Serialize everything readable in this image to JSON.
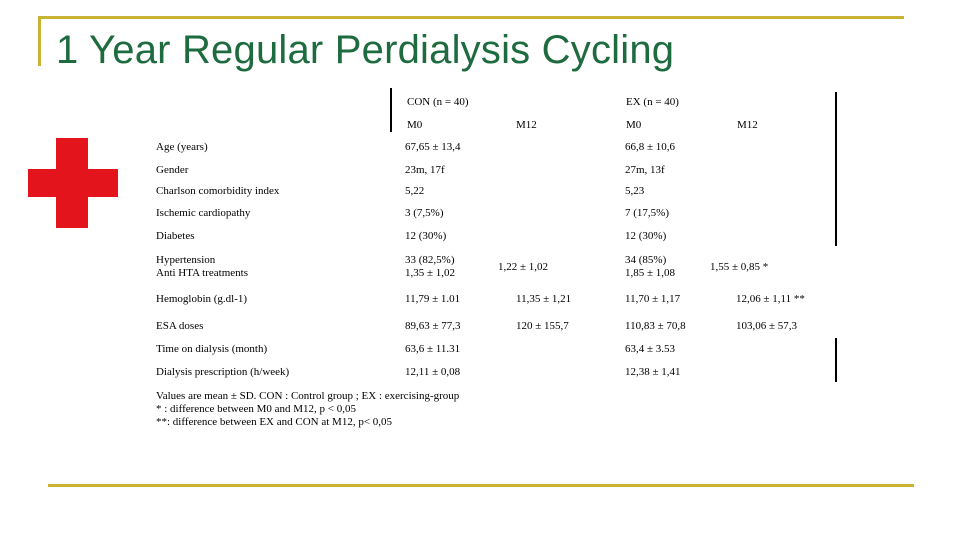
{
  "title": "1 Year Regular Perdialysis Cycling",
  "icons": {
    "logo": "red-cross-icon"
  },
  "header": {
    "con": "CON (n = 40)",
    "ex": "EX  (n  = 40)",
    "con_m0": "M0",
    "con_m12": "M12",
    "ex_m0": "M0",
    "ex_m12": "M12"
  },
  "rows": [
    {
      "label": "Age (years)",
      "con_m0": "67,65 ± 13,4",
      "con_m12": "",
      "ex_m0": "66,8 ± 10,6",
      "ex_m12": ""
    },
    {
      "label": "Gender",
      "con_m0": "23m, 17f",
      "con_m12": "",
      "ex_m0": "27m, 13f",
      "ex_m12": ""
    },
    {
      "label": "Charlson comorbidity index",
      "con_m0": "5,22",
      "con_m12": "",
      "ex_m0": "5,23",
      "ex_m12": ""
    },
    {
      "label": "Ischemic cardiopathy",
      "con_m0": "3 (7,5%)",
      "con_m12": "",
      "ex_m0": "7 (17,5%)",
      "ex_m12": ""
    },
    {
      "label": "Diabetes",
      "con_m0": "12 (30%)",
      "con_m12": "",
      "ex_m0": "12 (30%)",
      "ex_m12": ""
    },
    {
      "label": "Hypertension",
      "label2": "Anti HTA treatments",
      "con_m0": "33 (82,5%)",
      "con_m0_2": "1,35 ± 1,02",
      "con_m12": "1,22 ± 1,02",
      "ex_m0": "34 (85%)",
      "ex_m0_2": "1,85 ± 1,08",
      "ex_m12": "1,55 ± 0,85   *"
    },
    {
      "label": "Hemoglobin (g.dl-1)",
      "con_m0": "11,79 ± 1.01",
      "con_m12": "11,35 ± 1,21",
      "ex_m0": "11,70 ± 1,17",
      "ex_m12": "12,06 ± 1,11 **"
    },
    {
      "label": "ESA doses",
      "con_m0": "89,63 ± 77,3",
      "con_m12": "120 ± 155,7",
      "ex_m0": "110,83 ± 70,8",
      "ex_m12": "103,06 ± 57,3"
    },
    {
      "label": "Time on dialysis (month)",
      "con_m0": "63,6 ± 11.31",
      "con_m12": "",
      "ex_m0": "63,4 ± 3.53",
      "ex_m12": ""
    },
    {
      "label": "Dialysis prescription (h/week)",
      "con_m0": "12,11 ± 0,08",
      "con_m12": "",
      "ex_m0": "12,38 ± 1,41",
      "ex_m12": ""
    }
  ],
  "footnotes": [
    "Values are mean ± SD. CON : Control group ; EX : exercising-group",
    "* :  difference between M0 and M12, p < 0,05",
    "**: difference between EX and CON at M12, p< 0,05"
  ]
}
